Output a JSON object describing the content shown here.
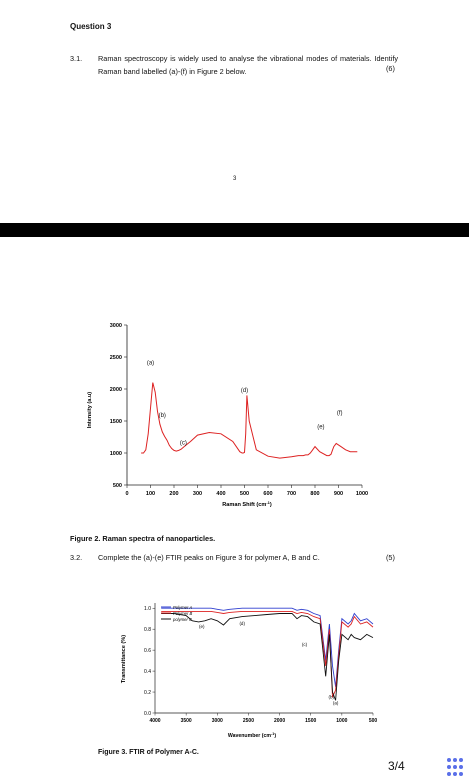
{
  "page1": {
    "question_title": "Question 3",
    "q31": {
      "number": "3.1.",
      "text": "Raman spectroscopy is widely used to analyse the vibrational modes of materials. Identify Raman band labelled (a)-(f) in Figure 2 below.",
      "marks": "(6)"
    },
    "page_number": "3"
  },
  "figure2": {
    "caption": "Figure 2. Raman spectra of nanoparticles.",
    "chart_data": {
      "type": "line",
      "title": "",
      "xlabel": "Raman Shift (cm-1)",
      "ylabel": "Intensity (a.u)",
      "xlim": [
        0,
        1000
      ],
      "ylim": [
        500,
        3000
      ],
      "xticks": [
        0,
        100,
        200,
        300,
        400,
        500,
        600,
        700,
        800,
        900,
        1000
      ],
      "yticks": [
        500,
        1000,
        1500,
        2000,
        2500,
        3000
      ],
      "grid": false,
      "color": "#d22",
      "x": [
        60,
        70,
        80,
        90,
        100,
        110,
        120,
        130,
        140,
        150,
        160,
        170,
        180,
        190,
        200,
        210,
        220,
        230,
        250,
        270,
        300,
        350,
        400,
        450,
        480,
        490,
        495,
        500,
        505,
        510,
        520,
        550,
        600,
        650,
        700,
        730,
        750,
        760,
        770,
        780,
        790,
        800,
        820,
        850,
        860,
        868,
        875,
        880,
        890,
        910,
        930,
        950,
        970,
        980
      ],
      "y": [
        1000,
        1000,
        1050,
        1300,
        1700,
        2100,
        1950,
        1650,
        1450,
        1330,
        1260,
        1200,
        1120,
        1070,
        1040,
        1030,
        1040,
        1060,
        1120,
        1180,
        1280,
        1320,
        1300,
        1180,
        1020,
        1000,
        1000,
        1010,
        1300,
        1900,
        1500,
        1050,
        950,
        920,
        940,
        960,
        960,
        970,
        970,
        1000,
        1050,
        1100,
        1020,
        960,
        960,
        980,
        1050,
        1100,
        1150,
        1100,
        1050,
        1020,
        1020,
        1020
      ],
      "band_labels": [
        {
          "label": "(a)",
          "x": 100,
          "y": 2380
        },
        {
          "label": "(b)",
          "x": 150,
          "y": 1560
        },
        {
          "label": "(c)",
          "x": 240,
          "y": 1130
        },
        {
          "label": "(d)",
          "x": 500,
          "y": 1950
        },
        {
          "label": "(e)",
          "x": 825,
          "y": 1380
        },
        {
          "label": "(f)",
          "x": 905,
          "y": 1600
        }
      ]
    }
  },
  "q32": {
    "number": "3.2.",
    "text": "Complete the (a)-(e) FTIR peaks on Figure 3 for polymer A, B and C.",
    "marks": "(5)"
  },
  "figure3": {
    "caption": "Figure 3. FTIR of Polymer A-C.",
    "chart_data": {
      "type": "line",
      "title": "",
      "xlabel": "Wavenumber (cm-1)",
      "ylabel": "Transmittance (%)",
      "xlim": [
        4000,
        500
      ],
      "ylim": [
        0.0,
        1.05
      ],
      "xticks": [
        4000,
        3500,
        3000,
        2500,
        2000,
        1500,
        1000,
        500
      ],
      "yticks": [
        0.0,
        0.2,
        0.4,
        0.6,
        0.8,
        1.0
      ],
      "legend": "top-left",
      "series": [
        {
          "name": "Polymer A",
          "color": "#2f3fcf",
          "x": [
            3900,
            3700,
            3500,
            3300,
            3100,
            3000,
            2900,
            2800,
            2600,
            2400,
            2200,
            2000,
            1800,
            1720,
            1650,
            1550,
            1450,
            1350,
            1260,
            1200,
            1150,
            1100,
            1050,
            1000,
            900,
            850,
            800,
            700,
            600,
            500
          ],
          "y": [
            1.0,
            1.0,
            1.0,
            1.0,
            1.0,
            0.99,
            0.98,
            0.99,
            1.0,
            1.0,
            1.0,
            1.0,
            1.0,
            0.98,
            0.99,
            0.98,
            0.95,
            0.93,
            0.5,
            0.85,
            0.45,
            0.25,
            0.6,
            0.9,
            0.85,
            0.88,
            0.95,
            0.88,
            0.9,
            0.85
          ]
        },
        {
          "name": "Polymer B",
          "color": "#d22",
          "x": [
            3900,
            3700,
            3500,
            3300,
            3100,
            3000,
            2900,
            2800,
            2600,
            2400,
            2200,
            2000,
            1800,
            1720,
            1650,
            1550,
            1450,
            1350,
            1260,
            1200,
            1150,
            1100,
            1050,
            1000,
            900,
            850,
            800,
            700,
            600,
            500
          ],
          "y": [
            0.97,
            0.97,
            0.97,
            0.97,
            0.97,
            0.96,
            0.95,
            0.96,
            0.97,
            0.97,
            0.97,
            0.97,
            0.97,
            0.95,
            0.96,
            0.95,
            0.92,
            0.9,
            0.45,
            0.8,
            0.15,
            0.22,
            0.55,
            0.87,
            0.82,
            0.85,
            0.92,
            0.85,
            0.87,
            0.82
          ]
        },
        {
          "name": "polymer C",
          "color": "#111",
          "x": [
            3900,
            3700,
            3500,
            3400,
            3300,
            3200,
            3100,
            3000,
            2950,
            2900,
            2800,
            2600,
            2400,
            2200,
            2000,
            1800,
            1720,
            1650,
            1550,
            1450,
            1350,
            1260,
            1200,
            1150,
            1100,
            1050,
            1000,
            900,
            850,
            800,
            700,
            600,
            500
          ],
          "y": [
            0.95,
            0.95,
            0.93,
            0.88,
            0.87,
            0.88,
            0.9,
            0.88,
            0.86,
            0.84,
            0.9,
            0.92,
            0.93,
            0.94,
            0.95,
            0.95,
            0.9,
            0.93,
            0.92,
            0.87,
            0.85,
            0.35,
            0.75,
            0.2,
            0.12,
            0.5,
            0.75,
            0.7,
            0.75,
            0.72,
            0.7,
            0.75,
            0.72
          ]
        }
      ],
      "annotations": [
        {
          "label": "(a)",
          "x": 1100,
          "y": 0.08
        },
        {
          "label": "(b)",
          "x": 1170,
          "y": 0.14
        },
        {
          "label": "(c)",
          "x": 1600,
          "y": 0.64
        },
        {
          "label": "(d)",
          "x": 2600,
          "y": 0.84
        },
        {
          "label": "(e)",
          "x": 3250,
          "y": 0.81
        }
      ]
    }
  },
  "viewer": {
    "page_counter": "3/4",
    "grid_icon": "grid-dots-icon"
  }
}
